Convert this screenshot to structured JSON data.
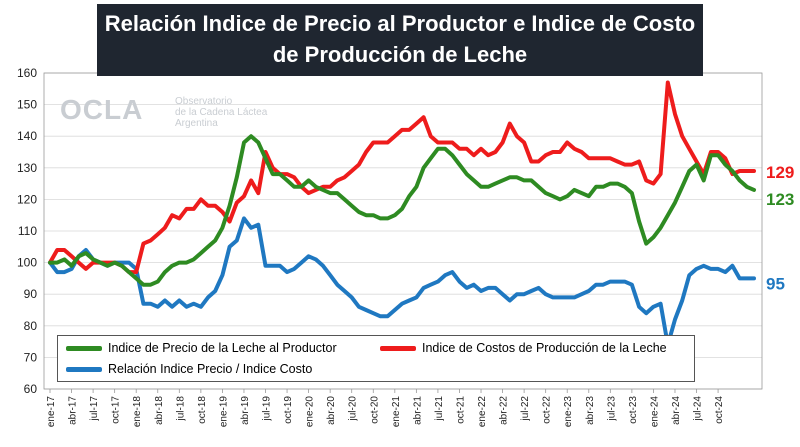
{
  "title_lines": [
    "Relación Indice de Precio al Productor e Indice de Costo",
    "de Producción de Leche"
  ],
  "watermark": {
    "logo": "OCLA",
    "lines": [
      "Observatorio",
      "de la Cadena Láctea",
      "Argentina"
    ]
  },
  "legend": [
    {
      "label": "Indice de Precio de la Leche al Productor",
      "color": "#2e8b22"
    },
    {
      "label": "Indice de Costos de Producción de la Leche",
      "color": "#ee1c1c"
    },
    {
      "label": "Relación Indice Precio / Indice Costo",
      "color": "#1f78c1"
    }
  ],
  "end_labels": {
    "costo": "129",
    "precio": "123",
    "relacion": "95"
  },
  "chart_data": {
    "type": "line",
    "title": "Relación Indice de Precio al Productor e Indice de Costo de Producción de Leche",
    "ylim": [
      60,
      160
    ],
    "yticks": [
      60,
      70,
      80,
      90,
      100,
      110,
      120,
      130,
      140,
      150,
      160
    ],
    "grid": true,
    "legend_position": "bottom",
    "x_tick_labels": [
      "ene-17",
      "abr-17",
      "jul-17",
      "oct-17",
      "ene-18",
      "abr-18",
      "jul-18",
      "oct-18",
      "ene-19",
      "abr-19",
      "jul-19",
      "oct-19",
      "ene-20",
      "abr-20",
      "jul-20",
      "oct-20",
      "ene-21",
      "abr-21",
      "jul-21",
      "oct-21",
      "ene-22",
      "abr-22",
      "jul-22",
      "oct-22",
      "ene-23",
      "abr-23",
      "jul-23",
      "oct-23",
      "ene-24",
      "abr-24",
      "jul-24",
      "oct-24"
    ],
    "series": [
      {
        "name": "Indice de Precio de la Leche al Productor",
        "color": "#2e8b22",
        "values": [
          100,
          100,
          101,
          99,
          102,
          103,
          101,
          100,
          99,
          100,
          99,
          97,
          95,
          93,
          93,
          94,
          97,
          99,
          100,
          100,
          101,
          103,
          105,
          107,
          111,
          118,
          127,
          138,
          140,
          138,
          133,
          128,
          128,
          126,
          124,
          124,
          126,
          124,
          123,
          122,
          122,
          120,
          118,
          116,
          115,
          115,
          114,
          114,
          115,
          117,
          121,
          124,
          130,
          133,
          136,
          136,
          134,
          131,
          128,
          126,
          124,
          124,
          125,
          126,
          127,
          127,
          126,
          126,
          124,
          122,
          121,
          120,
          121,
          123,
          122,
          121,
          124,
          124,
          125,
          125,
          124,
          122,
          113,
          106,
          108,
          111,
          115,
          119,
          124,
          129,
          131,
          126,
          134,
          134,
          131,
          129,
          126,
          124,
          123
        ]
      },
      {
        "name": "Indice de Costos de Producción de la Leche",
        "color": "#ee1c1c",
        "values": [
          100,
          104,
          104,
          102,
          100,
          98,
          100,
          100,
          100,
          100,
          99,
          97,
          97,
          106,
          107,
          109,
          111,
          115,
          114,
          117,
          117,
          120,
          118,
          118,
          116,
          113,
          119,
          121,
          126,
          122,
          135,
          130,
          128,
          128,
          127,
          124,
          122,
          123,
          124,
          124,
          126,
          127,
          129,
          131,
          135,
          138,
          138,
          138,
          140,
          142,
          142,
          144,
          146,
          140,
          138,
          138,
          138,
          136,
          136,
          134,
          136,
          134,
          135,
          138,
          144,
          140,
          138,
          132,
          132,
          134,
          135,
          135,
          138,
          136,
          135,
          133,
          133,
          133,
          133,
          132,
          131,
          131,
          132,
          126,
          125,
          128,
          157,
          147,
          140,
          136,
          132,
          128,
          135,
          135,
          133,
          128,
          129,
          129,
          129
        ]
      },
      {
        "name": "Relación Indice Precio / Indice Costo",
        "color": "#1f78c1",
        "values": [
          100,
          97,
          97,
          98,
          102,
          104,
          101,
          100,
          99,
          100,
          100,
          100,
          98,
          87,
          87,
          86,
          88,
          86,
          88,
          86,
          87,
          86,
          89,
          91,
          96,
          105,
          107,
          114,
          111,
          112,
          99,
          99,
          99,
          97,
          98,
          100,
          102,
          101,
          99,
          96,
          93,
          91,
          89,
          86,
          85,
          84,
          83,
          83,
          85,
          87,
          88,
          89,
          92,
          93,
          94,
          96,
          97,
          94,
          92,
          93,
          91,
          92,
          92,
          90,
          88,
          90,
          90,
          91,
          92,
          90,
          89,
          89,
          89,
          89,
          90,
          91,
          93,
          93,
          94,
          94,
          94,
          93,
          86,
          84,
          86,
          87,
          74,
          82,
          88,
          96,
          98,
          99,
          98,
          98,
          97,
          99,
          95,
          95,
          95
        ]
      }
    ]
  }
}
